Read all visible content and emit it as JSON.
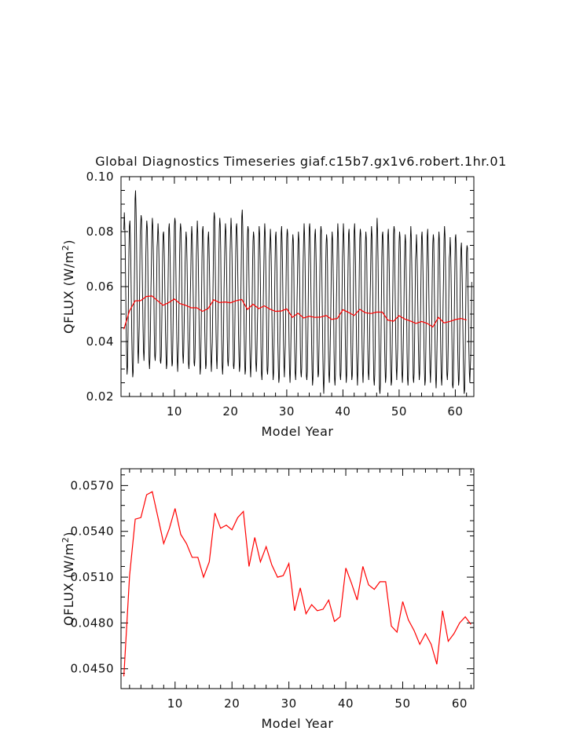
{
  "figure": {
    "title": "Global Diagnostics Timeseries giaf.c15b7.gx1v6.robert.1hr.01"
  },
  "colors": {
    "monthly_line": "#000000",
    "annual_line": "#ff0000",
    "axes": "#000000"
  },
  "chart_data": [
    {
      "type": "line",
      "title": "Global Diagnostics Timeseries giaf.c15b7.gx1v6.robert.1hr.01",
      "xlabel": "Model Year",
      "ylabel": "QFLUX (W/m2)",
      "xlim": [
        0.5,
        63.3
      ],
      "ylim": [
        0.02,
        0.1
      ],
      "xticks": [
        10,
        20,
        30,
        40,
        50,
        60
      ],
      "yticks": [
        0.02,
        0.04,
        0.06,
        0.08,
        0.1
      ],
      "ytick_labels": [
        "0.02",
        "0.04",
        "0.06",
        "0.08",
        "0.10"
      ],
      "monthly_cycle": {
        "description_of_series": "monthly values oscillating with seasonal cycle",
        "peaks": [
          0.087,
          0.084,
          0.095,
          0.086,
          0.084,
          0.085,
          0.083,
          0.08,
          0.083,
          0.085,
          0.083,
          0.08,
          0.082,
          0.084,
          0.082,
          0.08,
          0.087,
          0.085,
          0.083,
          0.085,
          0.083,
          0.088,
          0.082,
          0.08,
          0.082,
          0.083,
          0.081,
          0.08,
          0.082,
          0.081,
          0.079,
          0.08,
          0.083,
          0.083,
          0.081,
          0.082,
          0.079,
          0.08,
          0.083,
          0.083,
          0.081,
          0.083,
          0.081,
          0.08,
          0.082,
          0.085,
          0.08,
          0.081,
          0.082,
          0.08,
          0.079,
          0.082,
          0.079,
          0.08,
          0.081,
          0.079,
          0.08,
          0.082,
          0.078,
          0.079,
          0.076,
          0.075
        ],
        "troughs": [
          0.028,
          0.027,
          0.032,
          0.033,
          0.03,
          0.033,
          0.032,
          0.03,
          0.031,
          0.029,
          0.032,
          0.03,
          0.031,
          0.028,
          0.03,
          0.029,
          0.03,
          0.028,
          0.031,
          0.03,
          0.029,
          0.028,
          0.027,
          0.029,
          0.026,
          0.028,
          0.026,
          0.025,
          0.027,
          0.025,
          0.026,
          0.027,
          0.026,
          0.024,
          0.027,
          0.021,
          0.025,
          0.024,
          0.026,
          0.025,
          0.026,
          0.024,
          0.025,
          0.026,
          0.024,
          0.021,
          0.025,
          0.024,
          0.026,
          0.025,
          0.024,
          0.025,
          0.026,
          0.024,
          0.025,
          0.023,
          0.024,
          0.026,
          0.023,
          0.024,
          0.021,
          0.025
        ]
      },
      "series": [
        {
          "values": [
            0.0445,
            0.0511,
            0.0548,
            0.0549,
            0.0564,
            0.0566,
            0.0549,
            0.0532,
            0.0542,
            0.0555,
            0.0538,
            0.0532,
            0.0523,
            0.0523,
            0.051,
            0.052,
            0.0552,
            0.0542,
            0.0544,
            0.0541,
            0.0549,
            0.0553,
            0.0517,
            0.0536,
            0.052,
            0.053,
            0.0518,
            0.051,
            0.0511,
            0.0519,
            0.0488,
            0.0503,
            0.0486,
            0.0492,
            0.0488,
            0.0489,
            0.0495,
            0.0481,
            0.0484,
            0.0516,
            0.0506,
            0.0495,
            0.0517,
            0.0505,
            0.0502,
            0.0507,
            0.0507,
            0.0478,
            0.0474,
            0.0494,
            0.0482,
            0.0475,
            0.0466,
            0.0473,
            0.0466,
            0.0453,
            0.0488,
            0.0468,
            0.0473,
            0.048,
            0.0484,
            0.0479
          ]
        }
      ]
    },
    {
      "type": "line",
      "title": "",
      "xlabel": "Model Year",
      "ylabel": "QFLUX (W/m2)",
      "xlim": [
        0.5,
        62.5
      ],
      "ylim": [
        0.0437,
        0.0581
      ],
      "xticks": [
        10,
        20,
        30,
        40,
        50,
        60
      ],
      "yticks": [
        0.045,
        0.048,
        0.051,
        0.054,
        0.057
      ],
      "ytick_labels": [
        "0.0450",
        "0.0480",
        "0.0510",
        "0.0540",
        "0.0570"
      ],
      "series": [
        {
          "values": [
            0.0445,
            0.0511,
            0.0548,
            0.0549,
            0.0564,
            0.0566,
            0.0549,
            0.0532,
            0.0542,
            0.0555,
            0.0538,
            0.0532,
            0.0523,
            0.0523,
            0.051,
            0.052,
            0.0552,
            0.0542,
            0.0544,
            0.0541,
            0.0549,
            0.0553,
            0.0517,
            0.0536,
            0.052,
            0.053,
            0.0518,
            0.051,
            0.0511,
            0.0519,
            0.0488,
            0.0503,
            0.0486,
            0.0492,
            0.0488,
            0.0489,
            0.0495,
            0.0481,
            0.0484,
            0.0516,
            0.0506,
            0.0495,
            0.0517,
            0.0505,
            0.0502,
            0.0507,
            0.0507,
            0.0478,
            0.0474,
            0.0494,
            0.0482,
            0.0475,
            0.0466,
            0.0473,
            0.0466,
            0.0453,
            0.0488,
            0.0468,
            0.0473,
            0.048,
            0.0484,
            0.0479
          ]
        }
      ]
    }
  ]
}
